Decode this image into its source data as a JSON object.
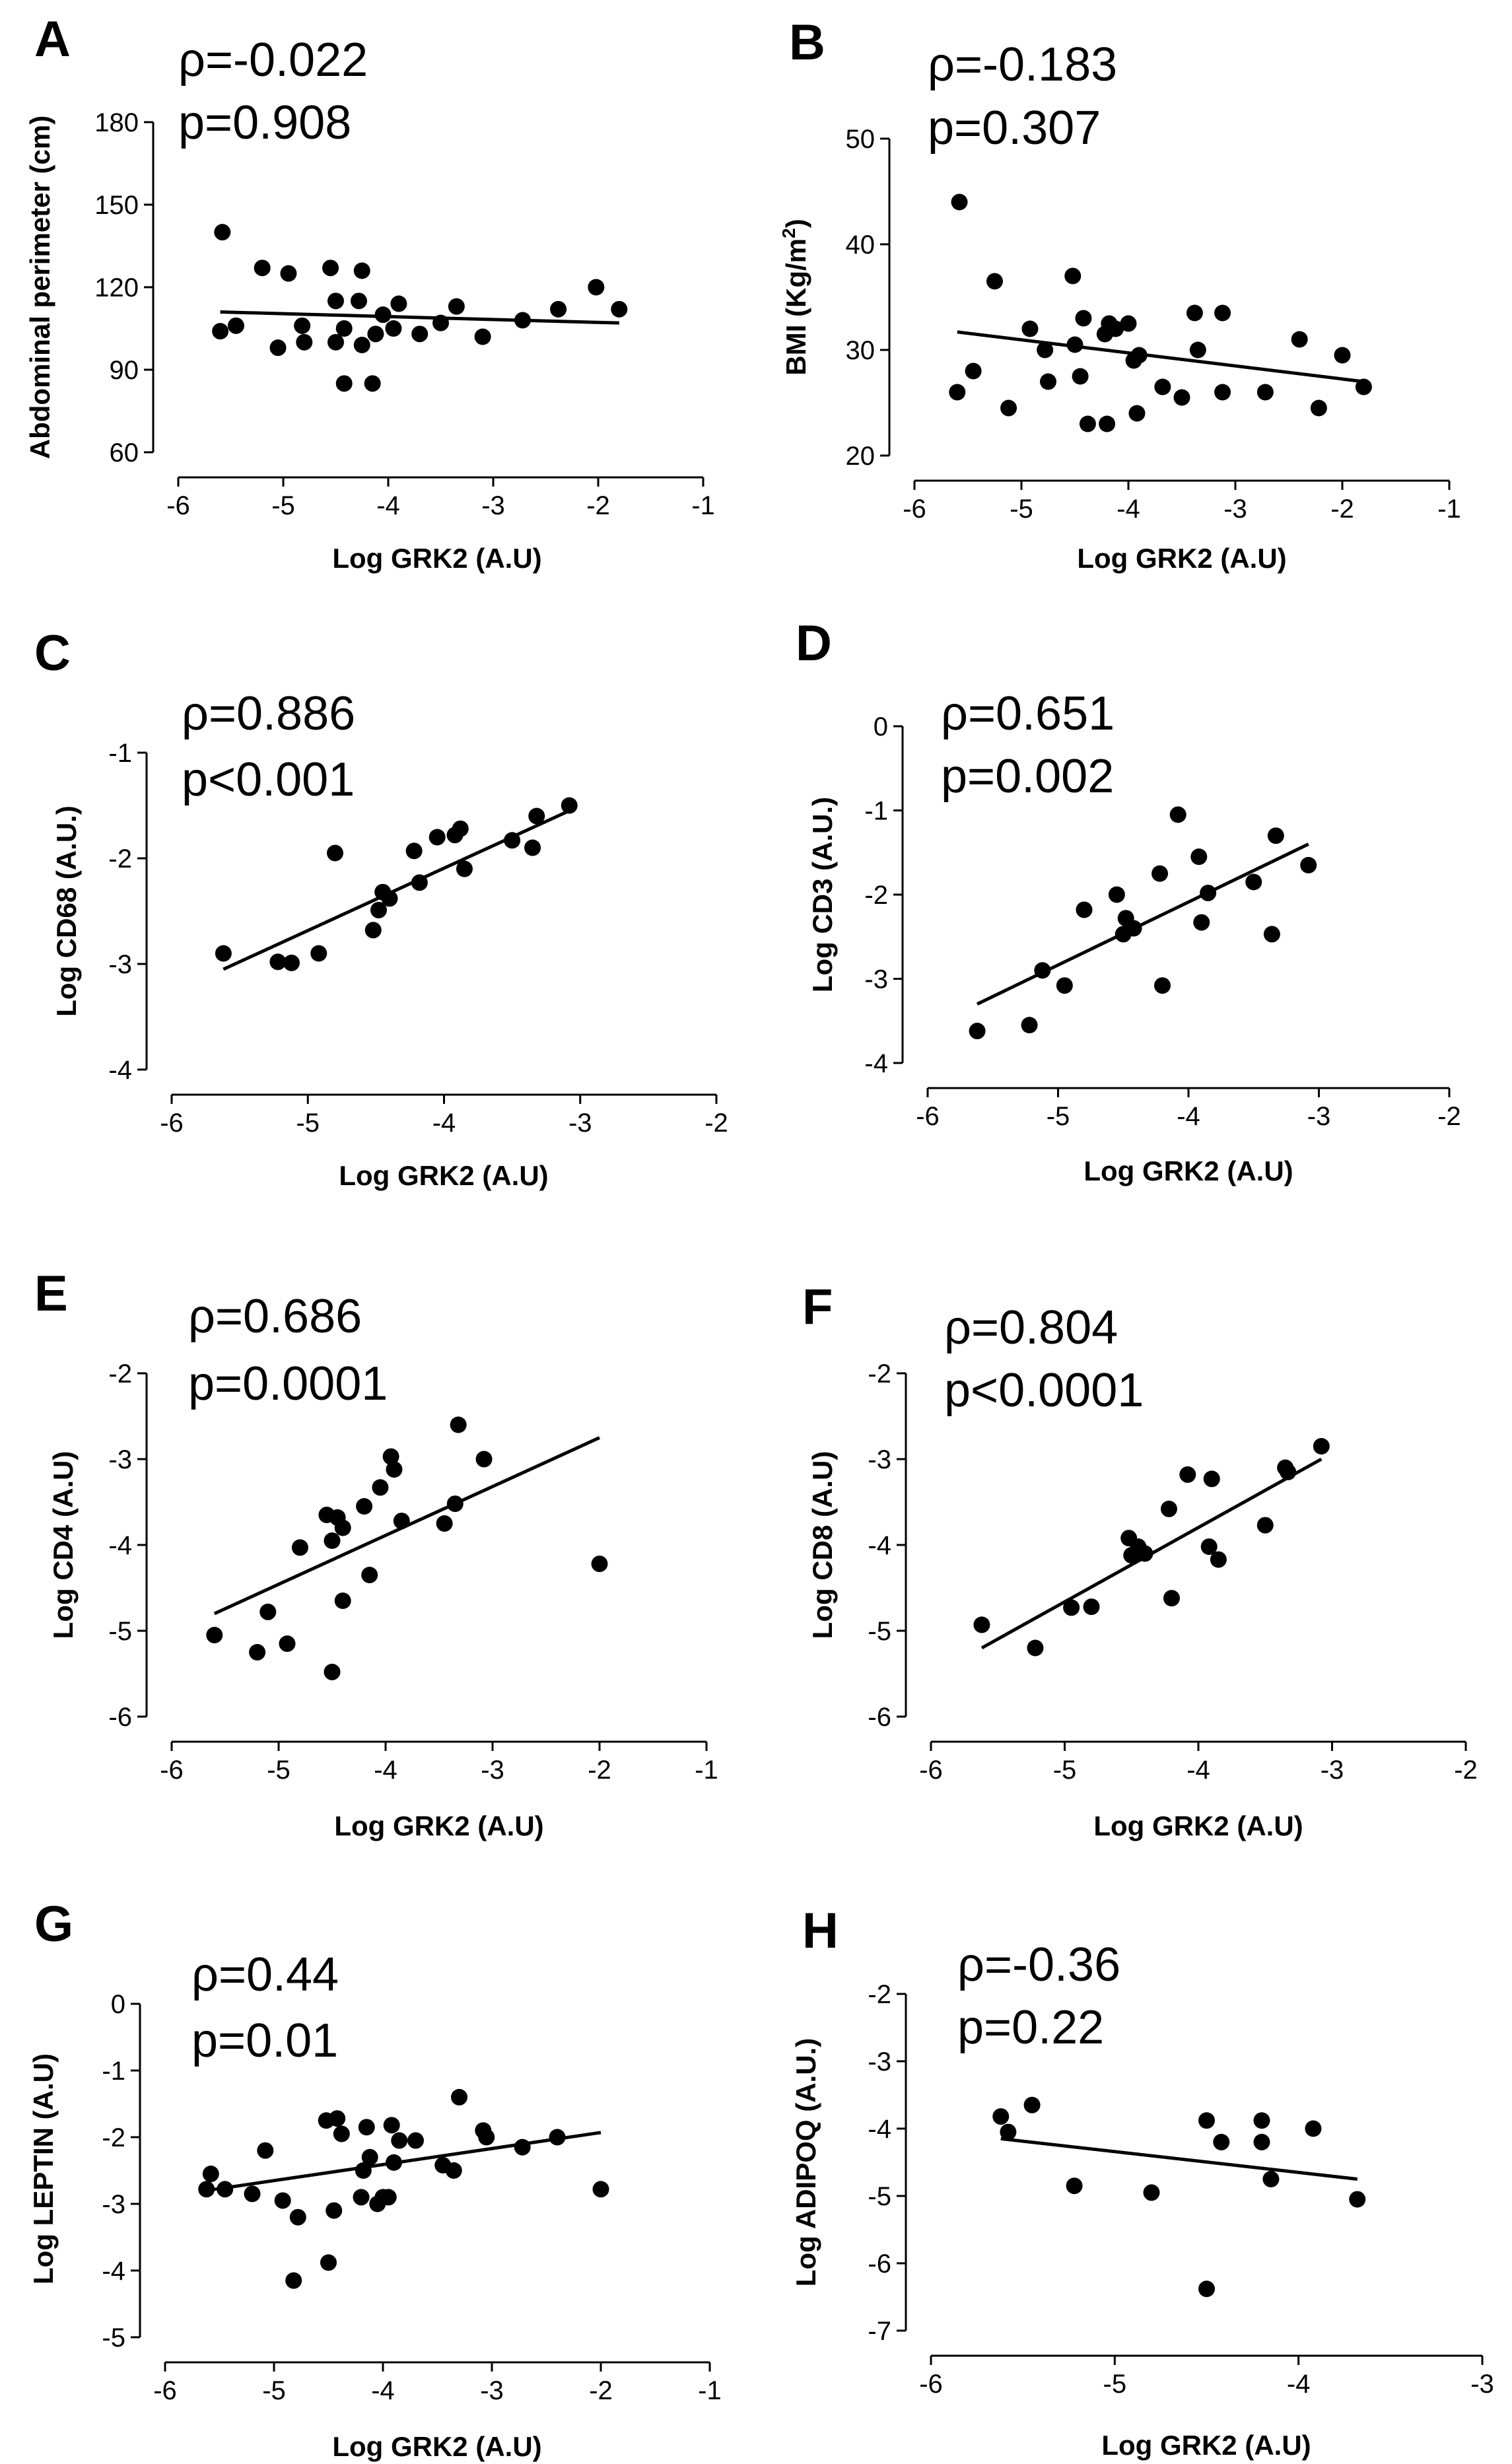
{
  "chart_data": [
    {
      "panel": "A",
      "type": "scatter",
      "stats": {
        "rho": "ρ=-0.022",
        "p": "p=0.908"
      },
      "xlabel": "Log GRK2 (A.U)",
      "ylabel": "Abdominal perimeter (cm)",
      "xlim": [
        -6,
        -1
      ],
      "ylim": [
        60,
        180
      ],
      "xticks": [
        -6,
        -5,
        -4,
        -3,
        -2,
        -1
      ],
      "yticks": [
        60,
        90,
        120,
        150,
        180
      ],
      "points": [
        [
          -5.58,
          140
        ],
        [
          -5.6,
          104
        ],
        [
          -5.45,
          106
        ],
        [
          -5.2,
          127
        ],
        [
          -5.05,
          98
        ],
        [
          -4.95,
          125
        ],
        [
          -4.82,
          106
        ],
        [
          -4.8,
          100
        ],
        [
          -4.55,
          127
        ],
        [
          -4.5,
          115
        ],
        [
          -4.5,
          100
        ],
        [
          -4.42,
          85
        ],
        [
          -4.42,
          105
        ],
        [
          -4.28,
          115
        ],
        [
          -4.25,
          126
        ],
        [
          -4.25,
          99
        ],
        [
          -4.15,
          85
        ],
        [
          -4.12,
          103
        ],
        [
          -4.05,
          110
        ],
        [
          -3.95,
          105
        ],
        [
          -3.9,
          114
        ],
        [
          -3.7,
          103
        ],
        [
          -3.5,
          107
        ],
        [
          -3.35,
          113
        ],
        [
          -3.1,
          102
        ],
        [
          -2.72,
          108
        ],
        [
          -2.38,
          112
        ],
        [
          -2.02,
          120
        ],
        [
          -1.8,
          112
        ]
      ],
      "fit": [
        [
          -5.6,
          111
        ],
        [
          -1.8,
          107
        ]
      ]
    },
    {
      "panel": "B",
      "type": "scatter",
      "stats": {
        "rho": "ρ=-0.183",
        "p": "p=0.307"
      },
      "xlabel": "Log GRK2 (A.U)",
      "ylabel_main": "BMI (Kg/m",
      "ylabel_sup": "2",
      "ylabel_end": ")",
      "xlim": [
        -6,
        -1
      ],
      "ylim": [
        20,
        50
      ],
      "xticks": [
        -6,
        -5,
        -4,
        -3,
        -2,
        -1
      ],
      "yticks": [
        20,
        30,
        40,
        50
      ],
      "points": [
        [
          -5.58,
          44
        ],
        [
          -5.6,
          26
        ],
        [
          -5.45,
          28
        ],
        [
          -5.25,
          36.5
        ],
        [
          -5.12,
          24.5
        ],
        [
          -4.92,
          32
        ],
        [
          -4.78,
          30
        ],
        [
          -4.75,
          27
        ],
        [
          -4.52,
          37
        ],
        [
          -4.5,
          30.5
        ],
        [
          -4.45,
          27.5
        ],
        [
          -4.42,
          33
        ],
        [
          -4.38,
          23
        ],
        [
          -4.22,
          31.5
        ],
        [
          -4.2,
          23
        ],
        [
          -4.18,
          32.5
        ],
        [
          -4.12,
          32
        ],
        [
          -4.0,
          32.5
        ],
        [
          -3.95,
          29
        ],
        [
          -3.9,
          29.5
        ],
        [
          -3.92,
          24
        ],
        [
          -3.68,
          26.5
        ],
        [
          -3.5,
          25.5
        ],
        [
          -3.35,
          30
        ],
        [
          -3.38,
          33.5
        ],
        [
          -3.12,
          33.5
        ],
        [
          -3.12,
          26
        ],
        [
          -2.72,
          26
        ],
        [
          -2.4,
          31
        ],
        [
          -2.22,
          24.5
        ],
        [
          -2.0,
          29.5
        ],
        [
          -1.8,
          26.5
        ]
      ],
      "fit": [
        [
          -5.6,
          31.7
        ],
        [
          -1.8,
          27
        ]
      ]
    },
    {
      "panel": "C",
      "type": "scatter",
      "stats": {
        "rho": "ρ=0.886",
        "p": "p<0.001"
      },
      "xlabel": "Log GRK2 (A.U)",
      "ylabel": "Log CD68 (A.U.)",
      "xlim": [
        -6,
        -2
      ],
      "ylim": [
        -4,
        -1
      ],
      "xticks": [
        -6,
        -5,
        -4,
        -3,
        -2
      ],
      "yticks": [
        -4,
        -3,
        -2,
        -1
      ],
      "points": [
        [
          -5.62,
          -2.9
        ],
        [
          -5.22,
          -2.98
        ],
        [
          -5.12,
          -2.99
        ],
        [
          -4.92,
          -2.9
        ],
        [
          -4.8,
          -1.95
        ],
        [
          -4.52,
          -2.68
        ],
        [
          -4.48,
          -2.49
        ],
        [
          -4.45,
          -2.32
        ],
        [
          -4.4,
          -2.38
        ],
        [
          -4.22,
          -1.93
        ],
        [
          -4.18,
          -2.23
        ],
        [
          -4.05,
          -1.8
        ],
        [
          -3.92,
          -1.78
        ],
        [
          -3.88,
          -1.72
        ],
        [
          -3.85,
          -2.1
        ],
        [
          -3.5,
          -1.83
        ],
        [
          -3.35,
          -1.9
        ],
        [
          -3.32,
          -1.6
        ],
        [
          -3.08,
          -1.5
        ]
      ],
      "fit": [
        [
          -5.62,
          -3.05
        ],
        [
          -3.08,
          -1.55
        ]
      ]
    },
    {
      "panel": "D",
      "type": "scatter",
      "stats": {
        "rho": "ρ=0.651",
        "p": "p=0.002"
      },
      "xlabel": "Log GRK2 (A.U)",
      "ylabel": "Log CD3 (A.U.)",
      "xlim": [
        -6,
        -2
      ],
      "ylim": [
        -4,
        0
      ],
      "xticks": [
        -6,
        -5,
        -4,
        -3,
        -2
      ],
      "yticks": [
        -4,
        -3,
        -2,
        -1,
        0
      ],
      "points": [
        [
          -5.62,
          -3.62
        ],
        [
          -5.22,
          -3.55
        ],
        [
          -5.12,
          -2.9
        ],
        [
          -4.95,
          -3.08
        ],
        [
          -4.8,
          -2.18
        ],
        [
          -4.55,
          -2.0
        ],
        [
          -4.5,
          -2.47
        ],
        [
          -4.48,
          -2.28
        ],
        [
          -4.42,
          -2.4
        ],
        [
          -4.22,
          -1.75
        ],
        [
          -4.2,
          -3.08
        ],
        [
          -4.08,
          -1.05
        ],
        [
          -3.92,
          -1.55
        ],
        [
          -3.9,
          -2.33
        ],
        [
          -3.85,
          -1.98
        ],
        [
          -3.5,
          -1.85
        ],
        [
          -3.36,
          -2.47
        ],
        [
          -3.33,
          -1.3
        ],
        [
          -3.08,
          -1.65
        ]
      ],
      "fit": [
        [
          -5.62,
          -3.3
        ],
        [
          -3.08,
          -1.4
        ]
      ]
    },
    {
      "panel": "E",
      "type": "scatter",
      "stats": {
        "rho": "ρ=0.686",
        "p": "p=0.0001"
      },
      "xlabel": "Log GRK2 (A.U)",
      "ylabel": "Log CD4 (A.U)",
      "xlim": [
        -6,
        -1
      ],
      "ylim": [
        -6,
        -2
      ],
      "xticks": [
        -6,
        -5,
        -4,
        -3,
        -2,
        -1
      ],
      "yticks": [
        -6,
        -5,
        -4,
        -3,
        -2
      ],
      "points": [
        [
          -5.6,
          -5.05
        ],
        [
          -5.2,
          -5.25
        ],
        [
          -5.1,
          -4.78
        ],
        [
          -4.92,
          -5.15
        ],
        [
          -4.8,
          -4.03
        ],
        [
          -4.55,
          -3.65
        ],
        [
          -4.5,
          -3.95
        ],
        [
          -4.5,
          -5.48
        ],
        [
          -4.45,
          -3.68
        ],
        [
          -4.4,
          -3.8
        ],
        [
          -4.4,
          -4.65
        ],
        [
          -4.2,
          -3.55
        ],
        [
          -4.15,
          -4.35
        ],
        [
          -4.05,
          -3.33
        ],
        [
          -3.95,
          -2.97
        ],
        [
          -3.92,
          -3.12
        ],
        [
          -3.85,
          -3.72
        ],
        [
          -3.45,
          -3.75
        ],
        [
          -3.35,
          -3.52
        ],
        [
          -3.32,
          -2.6
        ],
        [
          -3.08,
          -3.0
        ],
        [
          -2.0,
          -4.22
        ]
      ],
      "fit": [
        [
          -5.6,
          -4.8
        ],
        [
          -2.0,
          -2.75
        ]
      ]
    },
    {
      "panel": "F",
      "type": "scatter",
      "stats": {
        "rho": "ρ=0.804",
        "p": "p<0.0001"
      },
      "xlabel": "Log GRK2 (A.U)",
      "ylabel": "Log CD8 (A.U)",
      "xlim": [
        -6,
        -2
      ],
      "ylim": [
        -6,
        -2
      ],
      "xticks": [
        -6,
        -5,
        -4,
        -3,
        -2
      ],
      "yticks": [
        -6,
        -5,
        -4,
        -3,
        -2
      ],
      "points": [
        [
          -5.62,
          -4.93
        ],
        [
          -5.22,
          -5.2
        ],
        [
          -4.95,
          -4.73
        ],
        [
          -4.8,
          -4.72
        ],
        [
          -4.52,
          -3.92
        ],
        [
          -4.5,
          -4.12
        ],
        [
          -4.45,
          -4.02
        ],
        [
          -4.4,
          -4.1
        ],
        [
          -4.22,
          -3.58
        ],
        [
          -4.2,
          -4.62
        ],
        [
          -4.08,
          -3.18
        ],
        [
          -3.92,
          -4.02
        ],
        [
          -3.9,
          -3.23
        ],
        [
          -3.85,
          -4.17
        ],
        [
          -3.5,
          -3.77
        ],
        [
          -3.35,
          -3.1
        ],
        [
          -3.33,
          -3.15
        ],
        [
          -3.08,
          -2.85
        ]
      ],
      "fit": [
        [
          -5.62,
          -5.2
        ],
        [
          -3.08,
          -3.0
        ]
      ]
    },
    {
      "panel": "G",
      "type": "scatter",
      "stats": {
        "rho": "ρ=0.44",
        "p": "p=0.01"
      },
      "xlabel": "Log GRK2 (A.U)",
      "ylabel": "Log LEPTIN (A.U)",
      "xlim": [
        -6,
        -1
      ],
      "ylim": [
        -5,
        0
      ],
      "xticks": [
        -6,
        -5,
        -4,
        -3,
        -2,
        -1
      ],
      "yticks": [
        -5,
        -4,
        -3,
        -2,
        -1,
        0
      ],
      "points": [
        [
          -5.62,
          -2.78
        ],
        [
          -5.58,
          -2.55
        ],
        [
          -5.45,
          -2.78
        ],
        [
          -5.2,
          -2.85
        ],
        [
          -5.08,
          -2.2
        ],
        [
          -4.92,
          -2.95
        ],
        [
          -4.82,
          -4.15
        ],
        [
          -4.78,
          -3.2
        ],
        [
          -4.52,
          -1.75
        ],
        [
          -4.5,
          -3.88
        ],
        [
          -4.45,
          -3.1
        ],
        [
          -4.42,
          -1.72
        ],
        [
          -4.38,
          -1.95
        ],
        [
          -4.2,
          -2.9
        ],
        [
          -4.18,
          -2.5
        ],
        [
          -4.15,
          -1.85
        ],
        [
          -4.12,
          -2.3
        ],
        [
          -4.05,
          -3.0
        ],
        [
          -4.0,
          -2.9
        ],
        [
          -3.95,
          -2.9
        ],
        [
          -3.92,
          -1.82
        ],
        [
          -3.9,
          -2.38
        ],
        [
          -3.85,
          -2.05
        ],
        [
          -3.7,
          -2.05
        ],
        [
          -3.45,
          -2.42
        ],
        [
          -3.35,
          -2.5
        ],
        [
          -3.3,
          -1.4
        ],
        [
          -3.08,
          -1.9
        ],
        [
          -3.05,
          -2.0
        ],
        [
          -2.72,
          -2.15
        ],
        [
          -2.4,
          -2.0
        ],
        [
          -2.0,
          -2.78
        ]
      ],
      "fit": [
        [
          -5.62,
          -2.8
        ],
        [
          -2.0,
          -1.93
        ]
      ]
    },
    {
      "panel": "H",
      "type": "scatter",
      "stats": {
        "rho": "ρ=-0.36",
        "p": "p=0.22"
      },
      "xlabel": "Log GRK2 (A.U)",
      "ylabel": "Log ADIPOQ (A.U.)",
      "xlim": [
        -6,
        -3
      ],
      "ylim": [
        -7,
        -2
      ],
      "xticks": [
        -6,
        -5,
        -4,
        -3
      ],
      "yticks": [
        -7,
        -6,
        -5,
        -4,
        -3,
        -2
      ],
      "points": [
        [
          -5.62,
          -3.82
        ],
        [
          -5.58,
          -4.05
        ],
        [
          -5.45,
          -3.65
        ],
        [
          -5.22,
          -4.85
        ],
        [
          -4.8,
          -4.95
        ],
        [
          -4.5,
          -3.88
        ],
        [
          -4.5,
          -6.38
        ],
        [
          -4.42,
          -4.2
        ],
        [
          -4.2,
          -3.88
        ],
        [
          -4.2,
          -4.2
        ],
        [
          -4.15,
          -4.75
        ],
        [
          -3.92,
          -4.0
        ],
        [
          -3.68,
          -5.05
        ]
      ],
      "fit": [
        [
          -5.62,
          -4.15
        ],
        [
          -3.68,
          -4.75
        ]
      ]
    }
  ]
}
